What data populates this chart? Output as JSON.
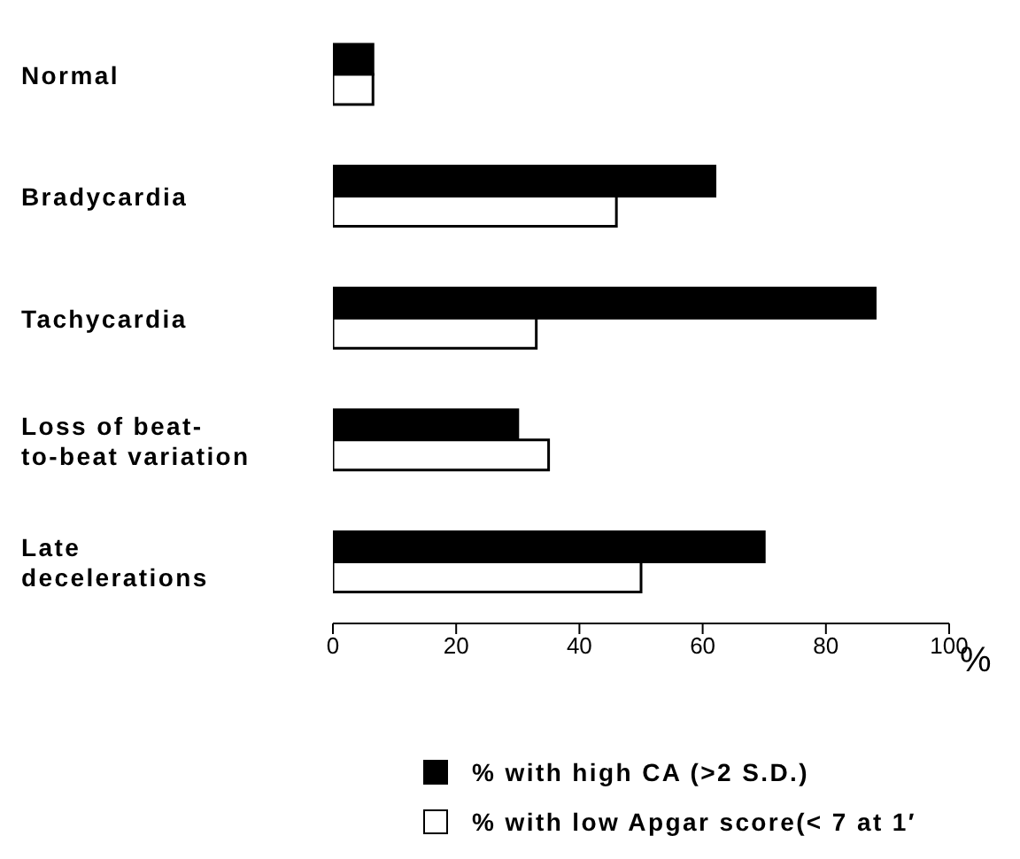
{
  "chart_data": {
    "type": "bar",
    "orientation": "horizontal",
    "categories": [
      "Normal",
      "Bradycardia",
      "Tachycardia",
      "Loss of beat-\nto-beat variation",
      "Late\ndecelerations"
    ],
    "series": [
      {
        "name": "% with high CA (>2 S.D.)",
        "color": "#000000",
        "values": [
          6.5,
          62,
          88,
          30,
          70
        ]
      },
      {
        "name": "% with low Apgar score(< 7 at 1′",
        "color": "#ffffff",
        "values": [
          6.5,
          46,
          33,
          35,
          50
        ]
      }
    ],
    "xlabel": "%",
    "xlim": [
      0,
      100
    ],
    "xticks": [
      0,
      20,
      40,
      60,
      80,
      100
    ],
    "grid": false,
    "legend": "bottom"
  }
}
